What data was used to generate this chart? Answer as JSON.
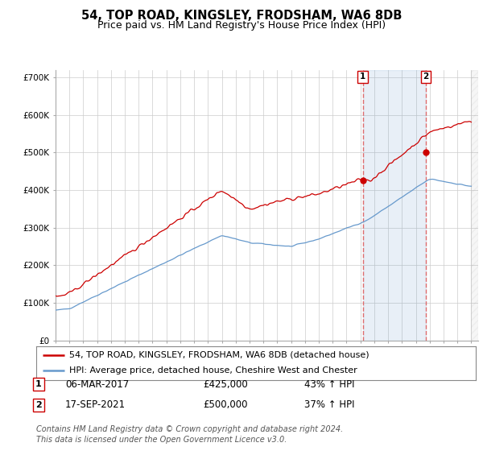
{
  "title": "54, TOP ROAD, KINGSLEY, FRODSHAM, WA6 8DB",
  "subtitle": "Price paid vs. HM Land Registry's House Price Index (HPI)",
  "ylabel_ticks": [
    "£0",
    "£100K",
    "£200K",
    "£300K",
    "£400K",
    "£500K",
    "£600K",
    "£700K"
  ],
  "ylim": [
    0,
    720000
  ],
  "xlim_start": 1995.0,
  "xlim_end": 2025.5,
  "sale1_date": 2017.17,
  "sale1_price": 425000,
  "sale1_label": "1",
  "sale2_date": 2021.72,
  "sale2_price": 500000,
  "sale2_label": "2",
  "red_line_color": "#cc0000",
  "blue_line_color": "#6699cc",
  "vline_color": "#e06060",
  "shade_color": "#ddeeff",
  "background_color": "#ffffff",
  "grid_color": "#cccccc",
  "legend_label_red": "54, TOP ROAD, KINGSLEY, FRODSHAM, WA6 8DB (detached house)",
  "legend_label_blue": "HPI: Average price, detached house, Cheshire West and Chester",
  "annotation1_box": "1",
  "annotation1_text": "06-MAR-2017",
  "annotation1_price": "£425,000",
  "annotation1_hpi": "43% ↑ HPI",
  "annotation2_box": "2",
  "annotation2_text": "17-SEP-2021",
  "annotation2_price": "£500,000",
  "annotation2_hpi": "37% ↑ HPI",
  "footer": "Contains HM Land Registry data © Crown copyright and database right 2024.\nThis data is licensed under the Open Government Licence v3.0.",
  "title_fontsize": 10.5,
  "subtitle_fontsize": 9,
  "tick_fontsize": 7.5,
  "legend_fontsize": 8,
  "annotation_fontsize": 8.5,
  "footer_fontsize": 7
}
